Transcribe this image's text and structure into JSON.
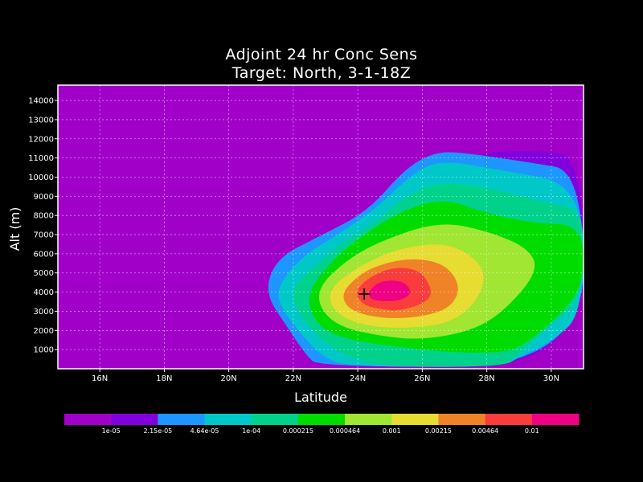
{
  "chart_data": {
    "type": "filled-contour",
    "title": "Adjoint 24 hr Conc Sens",
    "subtitle": "Target: North, 3-1-18Z",
    "xlabel": "Latitude",
    "ylabel": "Alt (m)",
    "xlim": [
      14.7,
      31.0
    ],
    "ylim": [
      0,
      14800
    ],
    "grid": true,
    "x_ticks": [
      16,
      18,
      20,
      22,
      24,
      26,
      28,
      30
    ],
    "x_tick_labels": [
      "16N",
      "18N",
      "20N",
      "22N",
      "24N",
      "26N",
      "28N",
      "30N"
    ],
    "y_ticks": [
      1000,
      2000,
      3000,
      4000,
      5000,
      6000,
      7000,
      8000,
      9000,
      10000,
      11000,
      12000,
      13000,
      14000
    ],
    "y_tick_labels": [
      "1000",
      "2000",
      "3000",
      "4000",
      "5000",
      "6000",
      "7000",
      "8000",
      "9000",
      "10000",
      "11000",
      "12000",
      "13000",
      "14000"
    ],
    "levels": [
      1e-05,
      2.15e-05,
      4.64e-05,
      0.0001,
      0.000215,
      0.000464,
      0.001,
      0.00215,
      0.00464,
      0.01
    ],
    "level_labels": [
      "1e-05",
      "2.15e-05",
      "4.64e-05",
      "1e-04",
      "0.000215",
      "0.000464",
      "0.001",
      "0.00215",
      "0.00464",
      "0.01"
    ],
    "colors": [
      "#a000c8",
      "#8200dc",
      "#1e96ff",
      "#00c8c8",
      "#00d28c",
      "#00dc00",
      "#a0e632",
      "#e6dc32",
      "#f08228",
      "#fa3c3c",
      "#f00082"
    ],
    "contours": [
      {
        "level_index": 1,
        "points": [
          [
            23.8,
            100
          ],
          [
            22.9,
            1000
          ],
          [
            22.6,
            2600
          ],
          [
            23.5,
            4700
          ],
          [
            25.5,
            7600
          ],
          [
            27.0,
            10300
          ],
          [
            27.8,
            11300
          ],
          [
            29.5,
            11400
          ],
          [
            31.0,
            11100
          ],
          [
            31.0,
            100
          ]
        ]
      },
      {
        "level_index": 2,
        "points": [
          [
            22.8,
            100
          ],
          [
            22.4,
            700
          ],
          [
            21.8,
            2200
          ],
          [
            21.1,
            4000
          ],
          [
            21.5,
            5800
          ],
          [
            22.8,
            6900
          ],
          [
            24.3,
            8200
          ],
          [
            25.5,
            10500
          ],
          [
            26.4,
            11300
          ],
          [
            27.2,
            11300
          ],
          [
            29.2,
            10800
          ],
          [
            31.0,
            10300
          ],
          [
            31.0,
            100
          ]
        ]
      },
      {
        "level_index": 3,
        "points": [
          [
            23.9,
            100
          ],
          [
            23.0,
            500
          ],
          [
            22.4,
            1500
          ],
          [
            21.6,
            3200
          ],
          [
            21.5,
            4300
          ],
          [
            22.3,
            5900
          ],
          [
            23.3,
            6900
          ],
          [
            24.6,
            8400
          ],
          [
            25.7,
            10200
          ],
          [
            26.6,
            10900
          ],
          [
            28.3,
            10400
          ],
          [
            31.0,
            9600
          ],
          [
            31.0,
            2900
          ],
          [
            30.0,
            1400
          ],
          [
            29.0,
            600
          ],
          [
            28.5,
            100
          ]
        ]
      },
      {
        "level_index": 4,
        "points": [
          [
            24.8,
            100
          ],
          [
            23.5,
            700
          ],
          [
            22.6,
            1900
          ],
          [
            22.0,
            3400
          ],
          [
            22.0,
            4300
          ],
          [
            22.7,
            5400
          ],
          [
            23.4,
            6400
          ],
          [
            24.5,
            7600
          ],
          [
            25.4,
            8900
          ],
          [
            26.5,
            9800
          ],
          [
            28.2,
            9400
          ],
          [
            30.0,
            8600
          ],
          [
            31.0,
            8300
          ],
          [
            31.0,
            3600
          ],
          [
            29.7,
            1900
          ],
          [
            28.9,
            600
          ],
          [
            28.5,
            100
          ]
        ]
      },
      {
        "level_index": 5,
        "points": [
          [
            23.2,
            1600
          ],
          [
            22.5,
            2900
          ],
          [
            22.5,
            4200
          ],
          [
            23.3,
            5800
          ],
          [
            24.1,
            6900
          ],
          [
            25.4,
            8300
          ],
          [
            26.7,
            8900
          ],
          [
            27.8,
            8200
          ],
          [
            29.4,
            7600
          ],
          [
            31.0,
            7500
          ],
          [
            31.0,
            4200
          ],
          [
            30.0,
            2400
          ],
          [
            29.2,
            1300
          ],
          [
            28.5,
            800
          ],
          [
            26.3,
            900
          ]
        ]
      },
      {
        "level_index": 6,
        "points": [
          [
            23.4,
            2200
          ],
          [
            22.8,
            3200
          ],
          [
            22.8,
            4300
          ],
          [
            23.6,
            5600
          ],
          [
            24.6,
            6600
          ],
          [
            26.5,
            7700
          ],
          [
            28.0,
            7200
          ],
          [
            29.3,
            6300
          ],
          [
            29.6,
            5100
          ],
          [
            28.6,
            3100
          ],
          [
            27.6,
            2000
          ],
          [
            26.0,
            1500
          ],
          [
            24.7,
            1700
          ]
        ]
      },
      {
        "level_index": 7,
        "points": [
          [
            23.6,
            2600
          ],
          [
            23.1,
            3400
          ],
          [
            23.2,
            4300
          ],
          [
            24.0,
            5300
          ],
          [
            25.1,
            6200
          ],
          [
            26.5,
            6600
          ],
          [
            27.4,
            6100
          ],
          [
            28.0,
            5000
          ],
          [
            27.7,
            3500
          ],
          [
            26.9,
            2400
          ],
          [
            25.6,
            2100
          ],
          [
            24.4,
            2200
          ]
        ]
      },
      {
        "level_index": 8,
        "points": [
          [
            23.8,
            3000
          ],
          [
            23.5,
            3700
          ],
          [
            23.7,
            4400
          ],
          [
            24.4,
            5300
          ],
          [
            25.6,
            5800
          ],
          [
            26.7,
            5500
          ],
          [
            27.2,
            4300
          ],
          [
            26.9,
            3200
          ],
          [
            26.0,
            2700
          ],
          [
            24.8,
            2600
          ]
        ]
      },
      {
        "level_index": 9,
        "points": [
          [
            24.2,
            3300
          ],
          [
            23.9,
            3900
          ],
          [
            24.2,
            4600
          ],
          [
            25.0,
            5300
          ],
          [
            25.9,
            5200
          ],
          [
            26.3,
            4200
          ],
          [
            26.2,
            3500
          ],
          [
            25.3,
            3000
          ],
          [
            24.7,
            3100
          ]
        ]
      },
      {
        "level_index": 10,
        "points": [
          [
            24.4,
            3600
          ],
          [
            24.3,
            4000
          ],
          [
            24.7,
            4600
          ],
          [
            25.4,
            4600
          ],
          [
            25.7,
            4000
          ],
          [
            25.4,
            3600
          ],
          [
            24.9,
            3500
          ]
        ]
      }
    ],
    "marker": {
      "symbol": "+",
      "x": 24.2,
      "y": 3900
    }
  }
}
